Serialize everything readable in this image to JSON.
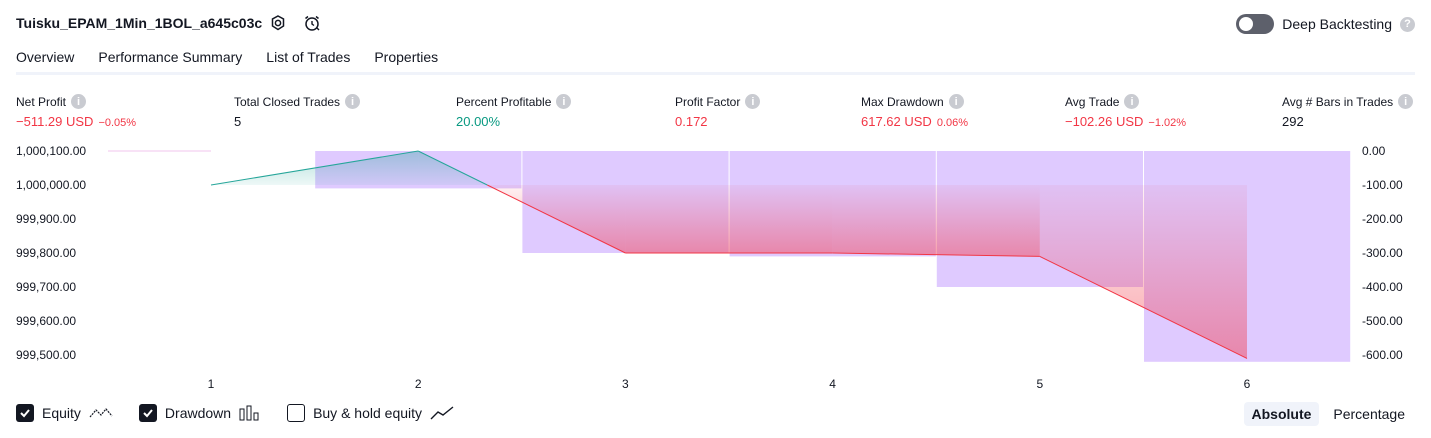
{
  "header": {
    "title": "Tuisku_EPAM_1Min_1BOL_a645c03c",
    "settings_icon": "gear-icon",
    "alert_icon": "alarm-clock-icon",
    "deep_backtesting_label": "Deep Backtesting",
    "deep_backtesting_enabled": false,
    "help_glyph": "?"
  },
  "tabs": [
    {
      "label": "Overview",
      "active": true
    },
    {
      "label": "Performance Summary",
      "active": false
    },
    {
      "label": "List of Trades",
      "active": false
    },
    {
      "label": "Properties",
      "active": false
    }
  ],
  "metrics": [
    {
      "label": "Net Profit",
      "value": "−511.29 USD",
      "pct": "−0.05%",
      "color": "#f23645"
    },
    {
      "label": "Total Closed Trades",
      "value": "5",
      "pct": "",
      "color": "#131722"
    },
    {
      "label": "Percent Profitable",
      "value": "20.00%",
      "pct": "",
      "color": "#089981"
    },
    {
      "label": "Profit Factor",
      "value": "0.172",
      "pct": "",
      "color": "#f23645"
    },
    {
      "label": "Max Drawdown",
      "value": "617.62 USD",
      "pct": "0.06%",
      "color": "#f23645"
    },
    {
      "label": "Avg Trade",
      "value": "−102.26 USD",
      "pct": "−1.02%",
      "color": "#f23645"
    },
    {
      "label": "Avg # Bars in Trades",
      "value": "292",
      "pct": "",
      "color": "#131722"
    }
  ],
  "chart_data": {
    "type": "line",
    "x": [
      1,
      2,
      3,
      4,
      5,
      6
    ],
    "series": [
      {
        "values": [
          1000000.0,
          1000100.0,
          999800.0,
          999800.0,
          999790.0,
          999490.0
        ]
      }
    ],
    "drawdown_bars": [
      0,
      -110,
      -300,
      -310,
      -400,
      -620
    ],
    "ylim_left": [
      999500,
      1000100
    ],
    "ylim_right": [
      -600,
      0
    ],
    "left_ticks": [
      "1,000,100.00",
      "1,000,000.00",
      "999,900.00",
      "999,800.00",
      "999,700.00",
      "999,600.00",
      "999,500.00"
    ],
    "right_ticks": [
      "0.00",
      "-100.00",
      "-200.00",
      "-300.00",
      "-400.00",
      "-500.00",
      "-600.00"
    ],
    "x_ticks": [
      "1",
      "2",
      "3",
      "4",
      "5",
      "6"
    ],
    "colors": {
      "positive": "#26a69a",
      "negative": "#f23645",
      "drawdown": "#d1b3ff"
    }
  },
  "legend": [
    {
      "label": "Equity",
      "checked": true,
      "icon": "equity-line-icon"
    },
    {
      "label": "Drawdown",
      "checked": true,
      "icon": "drawdown-bars-icon"
    },
    {
      "label": "Buy & hold equity",
      "checked": false,
      "icon": "buy-hold-line-icon"
    }
  ],
  "modes": [
    {
      "label": "Absolute",
      "active": true
    },
    {
      "label": "Percentage",
      "active": false
    }
  ]
}
